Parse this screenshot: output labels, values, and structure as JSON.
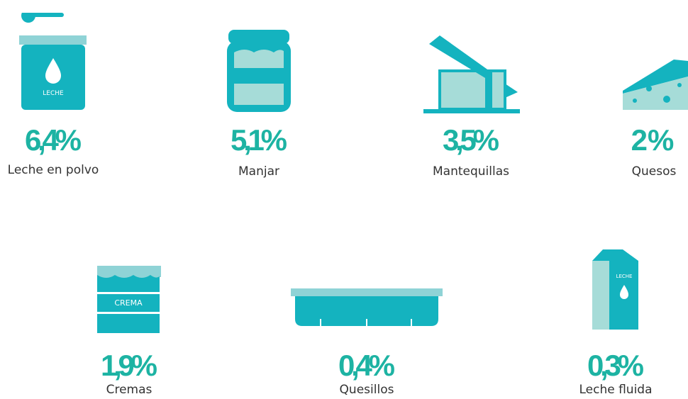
{
  "items": [
    {
      "value": "6,4%",
      "label": "Leche en polvo",
      "icon_text": "LECHE"
    },
    {
      "value": "5,1%",
      "label": "Manjar"
    },
    {
      "value": "3,5%",
      "label": "Mantequillas"
    },
    {
      "value": "2%",
      "label": "Quesos"
    },
    {
      "value": "1,9%",
      "label": "Cremas",
      "icon_text": "CREMA"
    },
    {
      "value": "0,4%",
      "label": "Quesillos"
    },
    {
      "value": "0,3%",
      "label": "Leche fluida",
      "icon_text": "LECHE"
    }
  ]
}
